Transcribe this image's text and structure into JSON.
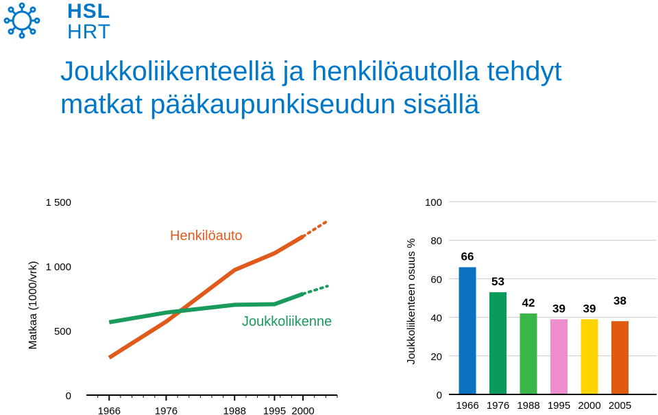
{
  "brand": {
    "line1": "HSL",
    "line2": "HRT"
  },
  "title": {
    "line1": "Joukkoliikenteellä ja henkilöautolla tehdyt",
    "line2": "matkat pääkaupunkiseudun sisällä"
  },
  "colors": {
    "brand": "#0077c8",
    "car": "#e05a1b",
    "transit": "#1a9a5c"
  },
  "chart_data": [
    {
      "type": "line",
      "ylabel": "Matkaa (1000/vrk)",
      "ylim": [
        0,
        1500
      ],
      "yticks": [
        "0",
        "500",
        "1 000",
        "1 500"
      ],
      "xticks": [
        "1966",
        "1976",
        "1988",
        "1995",
        "2000"
      ],
      "x": [
        1966,
        1976,
        1988,
        1995,
        2000
      ],
      "series": [
        {
          "name": "Henkilöauto",
          "values": [
            290,
            570,
            970,
            1100,
            1230
          ],
          "projection": [
            [
              2000,
              1230
            ],
            [
              2005,
              1350
            ]
          ],
          "color": "#e05a1b"
        },
        {
          "name": "Joukkoliikenne",
          "values": [
            565,
            640,
            700,
            705,
            785
          ],
          "projection": [
            [
              2000,
              785
            ],
            [
              2005,
              845
            ]
          ],
          "color": "#1a9a5c"
        }
      ]
    },
    {
      "type": "bar",
      "ylabel": "Joukkoliikenteen osuus %",
      "ylim": [
        0,
        100
      ],
      "yticks": [
        "0",
        "20",
        "40",
        "60",
        "80",
        "100"
      ],
      "categories": [
        "1966",
        "1976",
        "1988",
        "1995",
        "2000",
        "2005"
      ],
      "values": [
        66,
        53,
        42,
        39,
        39,
        38
      ],
      "colors": [
        "#0a72c0",
        "#0a9a5a",
        "#3ab54a",
        "#ef8ecf",
        "#ffd400",
        "#e05a10"
      ]
    }
  ]
}
